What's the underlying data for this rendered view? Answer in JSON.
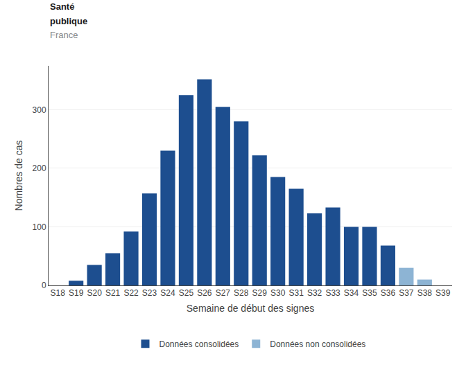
{
  "chart_data": {
    "type": "bar",
    "categories": [
      "S18",
      "S19",
      "S20",
      "S21",
      "S22",
      "S23",
      "S24",
      "S25",
      "S26",
      "S27",
      "S28",
      "S29",
      "S30",
      "S31",
      "S32",
      "S33",
      "S34",
      "S35",
      "S36",
      "S37",
      "S38",
      "S39"
    ],
    "series": [
      {
        "name": "Données consolidées",
        "color": "#1d4e8f",
        "values": [
          0,
          8,
          35,
          55,
          92,
          157,
          230,
          325,
          352,
          305,
          280,
          222,
          185,
          165,
          123,
          133,
          100,
          100,
          68,
          null,
          null,
          null
        ]
      },
      {
        "name": "Données non consolidées",
        "color": "#8db4d4",
        "values": [
          null,
          null,
          null,
          null,
          null,
          null,
          null,
          null,
          null,
          null,
          null,
          null,
          null,
          null,
          null,
          null,
          null,
          null,
          null,
          30,
          10,
          0
        ]
      }
    ],
    "xlabel": "Semaine de début des signes",
    "ylabel": "Nombres de cas",
    "ylim": [
      0,
      375
    ],
    "yticks": [
      0,
      100,
      200,
      300
    ],
    "grid": true,
    "legend": "bottom",
    "annotations": [
      "Santé",
      "publique",
      "France"
    ]
  }
}
